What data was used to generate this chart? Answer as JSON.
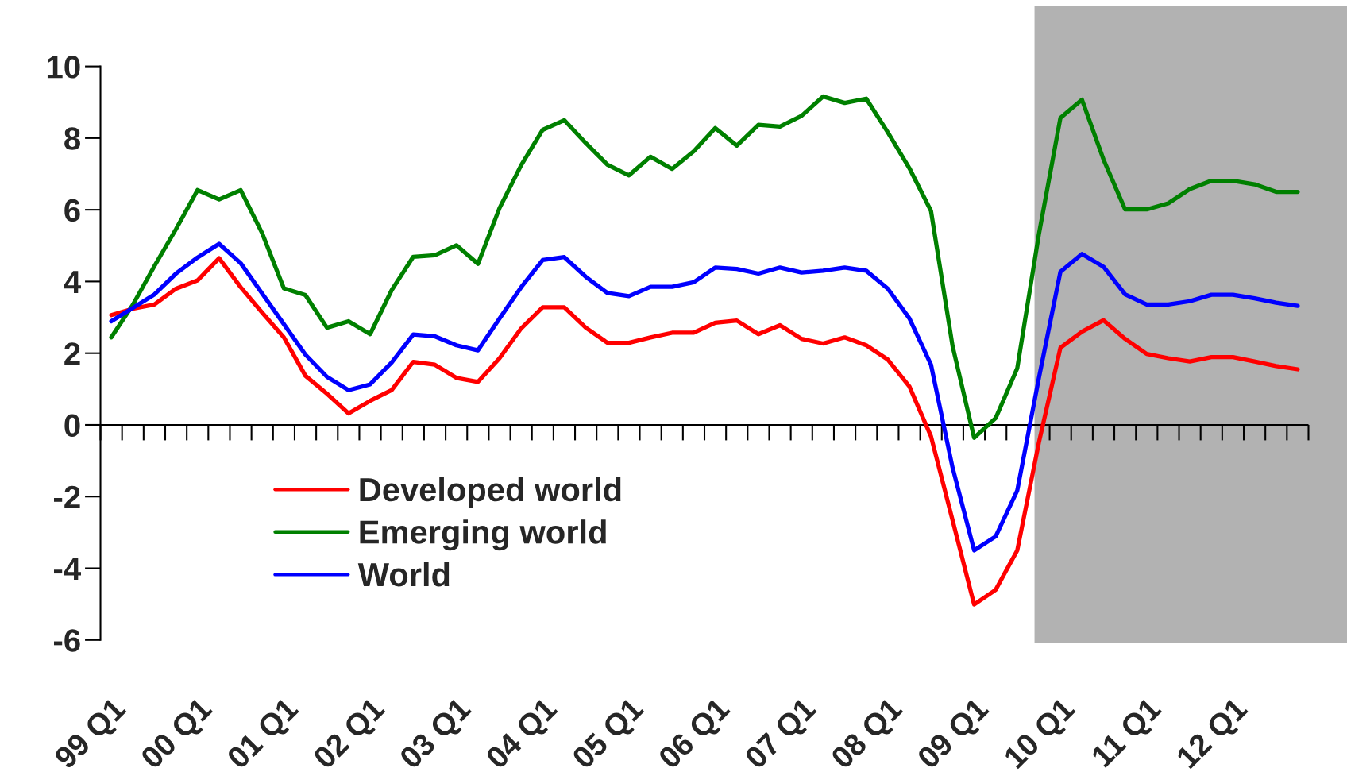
{
  "chart_data": {
    "type": "line",
    "categories": [
      "99 Q1",
      null,
      null,
      null,
      "00 Q1",
      null,
      null,
      null,
      "01 Q1",
      null,
      null,
      null,
      "02 Q1",
      null,
      null,
      null,
      "03 Q1",
      null,
      null,
      null,
      "04 Q1",
      null,
      null,
      null,
      "05 Q1",
      null,
      null,
      null,
      "06 Q1",
      null,
      null,
      null,
      "07 Q1",
      null,
      null,
      null,
      "08 Q1",
      null,
      null,
      null,
      "09 Q1",
      null,
      null,
      null,
      "10 Q1",
      null,
      null,
      null,
      "11 Q1",
      null,
      null,
      null,
      "12 Q1",
      null,
      null,
      null
    ],
    "series": [
      {
        "name": "Developed world",
        "color": "#ff0000",
        "values": [
          3.06,
          3.24,
          3.36,
          3.8,
          4.03,
          4.65,
          3.84,
          3.13,
          2.44,
          1.37,
          0.87,
          0.32,
          0.67,
          0.97,
          1.76,
          1.68,
          1.31,
          1.2,
          1.86,
          2.69,
          3.28,
          3.28,
          2.71,
          2.29,
          2.29,
          2.44,
          2.57,
          2.57,
          2.85,
          2.91,
          2.53,
          2.78,
          2.4,
          2.27,
          2.44,
          2.22,
          1.82,
          1.07,
          -0.32,
          -2.66,
          -5.01,
          -4.6,
          -3.5,
          -0.5,
          2.15,
          2.6,
          2.92,
          2.4,
          1.98,
          1.86,
          1.77,
          1.89,
          1.89,
          1.77,
          1.64,
          1.55
        ]
      },
      {
        "name": "Emerging world",
        "color": "#008000",
        "values": [
          2.44,
          3.35,
          4.43,
          5.46,
          6.55,
          6.29,
          6.55,
          5.34,
          3.81,
          3.62,
          2.71,
          2.89,
          2.53,
          3.76,
          4.69,
          4.73,
          5.01,
          4.49,
          6.05,
          7.24,
          8.23,
          8.5,
          7.86,
          7.26,
          6.96,
          7.48,
          7.14,
          7.63,
          8.28,
          7.79,
          8.37,
          8.32,
          8.62,
          9.16,
          8.98,
          9.1,
          8.16,
          7.16,
          5.97,
          2.2,
          -0.36,
          0.19,
          1.58,
          5.31,
          8.56,
          9.07,
          7.4,
          6.01,
          6.01,
          6.18,
          6.58,
          6.81,
          6.81,
          6.71,
          6.5,
          6.5
        ]
      },
      {
        "name": "World",
        "color": "#0000ff",
        "values": [
          2.89,
          3.26,
          3.64,
          4.22,
          4.67,
          5.05,
          4.51,
          3.66,
          2.81,
          1.96,
          1.34,
          0.97,
          1.13,
          1.74,
          2.52,
          2.47,
          2.22,
          2.08,
          2.97,
          3.84,
          4.6,
          4.68,
          4.13,
          3.68,
          3.59,
          3.85,
          3.85,
          3.98,
          4.39,
          4.35,
          4.22,
          4.39,
          4.25,
          4.3,
          4.39,
          4.3,
          3.8,
          2.97,
          1.68,
          -1.19,
          -3.5,
          -3.11,
          -1.83,
          1.3,
          4.27,
          4.77,
          4.41,
          3.64,
          3.36,
          3.36,
          3.45,
          3.63,
          3.63,
          3.53,
          3.41,
          3.32
        ]
      }
    ],
    "ylim": [
      -6,
      10
    ],
    "yticks": [
      -6,
      -4,
      -2,
      0,
      2,
      4,
      6,
      8,
      10
    ],
    "ref_lines": [
      {
        "axis": "y",
        "value": 0,
        "color": "#000000",
        "line_style": "solid"
      }
    ],
    "legend": "bottom left",
    "grid": false,
    "line_style": "solid",
    "marker": "none"
  }
}
